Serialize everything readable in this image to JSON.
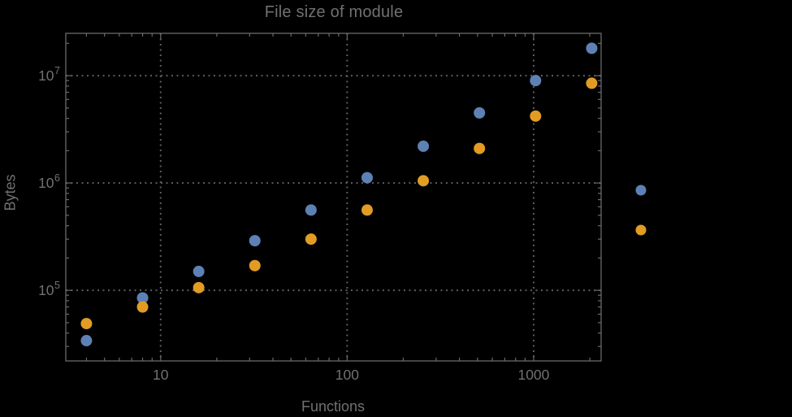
{
  "theme": {
    "background": "#000000",
    "frame_color": "#6a6a6a",
    "tick_color": "#6a6a6a",
    "grid_color": "#5d5d5d",
    "text_color": "#707070"
  },
  "chart_data": {
    "type": "scatter",
    "title": "File size of module",
    "xlabel": "Functions",
    "ylabel": "Bytes",
    "x_scale": "log",
    "y_scale": "log",
    "xlim": [
      3.1,
      2300
    ],
    "ylim": [
      22000,
      24800000
    ],
    "grid": {
      "style": "dotted",
      "on_major_ticks_only": true
    },
    "x_ticks": [
      {
        "value": 10,
        "label": "10"
      },
      {
        "value": 100,
        "label": "100"
      },
      {
        "value": 1000,
        "label": "1000"
      }
    ],
    "y_ticks": [
      {
        "value": 100000,
        "base": "10",
        "exp": "5"
      },
      {
        "value": 1000000,
        "base": "10",
        "exp": "6"
      },
      {
        "value": 10000000,
        "base": "10",
        "exp": "7"
      }
    ],
    "series": [
      {
        "name": "series-blue",
        "color": "#5e81b5",
        "marker": "circle",
        "points": [
          [
            4,
            34000
          ],
          [
            8,
            85000
          ],
          [
            16,
            150000
          ],
          [
            32,
            290000
          ],
          [
            64,
            560000
          ],
          [
            128,
            1120000
          ],
          [
            256,
            2200000
          ],
          [
            512,
            4500000
          ],
          [
            1024,
            9000000
          ],
          [
            2048,
            18000000
          ]
        ]
      },
      {
        "name": "series-orange",
        "color": "#e19c24",
        "marker": "circle",
        "points": [
          [
            4,
            49000
          ],
          [
            8,
            70000
          ],
          [
            16,
            106000
          ],
          [
            32,
            170000
          ],
          [
            64,
            300000
          ],
          [
            128,
            560000
          ],
          [
            256,
            1050000
          ],
          [
            512,
            2100000
          ],
          [
            1024,
            4200000
          ],
          [
            2048,
            8500000
          ]
        ]
      }
    ],
    "legend": {
      "position": "outside-right",
      "labels_visible": false
    }
  }
}
